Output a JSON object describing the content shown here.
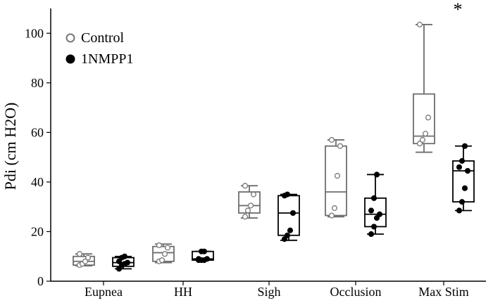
{
  "chart_data": {
    "type": "box",
    "title": "",
    "xlabel": "",
    "ylabel": "Pdi (cm H2O)",
    "ylim": [
      0,
      110
    ],
    "yticks": [
      0,
      20,
      40,
      60,
      80,
      100
    ],
    "grid": false,
    "legend_position": "top-left",
    "categories": [
      "Eupnea",
      "HH",
      "Sigh",
      "Occlusion",
      "Max Stim"
    ],
    "series": [
      {
        "name": "Control",
        "marker": "open-circle",
        "color": "#6e6e6e",
        "boxes": [
          {
            "min": 6.2,
            "q1": 6.5,
            "median": 8.0,
            "q3": 10.0,
            "max": 11.0,
            "points": [
              6.5,
              7.0,
              8.0,
              9.5,
              11.0
            ]
          },
          {
            "min": 7.5,
            "q1": 8.0,
            "median": 11.5,
            "q3": 14.0,
            "max": 15.0,
            "points": [
              8.0,
              8.5,
              11.0,
              13.5,
              14.5
            ]
          },
          {
            "min": 25.5,
            "q1": 27.5,
            "median": 30.5,
            "q3": 36.0,
            "max": 38.5,
            "points": [
              26.0,
              28.5,
              30.5,
              35.0,
              38.5
            ]
          },
          {
            "min": 26.0,
            "q1": 26.5,
            "median": 36.0,
            "q3": 54.5,
            "max": 57.0,
            "points": [
              26.5,
              29.5,
              42.5,
              54.5,
              57.0
            ]
          },
          {
            "min": 52.0,
            "q1": 55.5,
            "median": 58.5,
            "q3": 75.5,
            "max": 103.5,
            "points": [
              55.5,
              57.0,
              59.5,
              66.0,
              103.5
            ]
          }
        ]
      },
      {
        "name": "1NMPP1",
        "marker": "filled-circle",
        "color": "#000000",
        "boxes": [
          {
            "min": 5.0,
            "q1": 6.0,
            "median": 7.5,
            "q3": 9.5,
            "max": 10.0,
            "points": [
              5.0,
              6.5,
              7.0,
              7.5,
              8.0,
              9.5,
              10.0
            ]
          },
          {
            "min": 8.5,
            "q1": 8.5,
            "median": 9.0,
            "q3": 12.0,
            "max": 12.0,
            "points": [
              8.5,
              8.5,
              8.5,
              9.0,
              9.0,
              12.0,
              12.0
            ]
          },
          {
            "min": 16.5,
            "q1": 18.5,
            "median": 27.5,
            "q3": 34.5,
            "max": 35.0,
            "points": [
              17.0,
              18.5,
              20.5,
              27.5,
              34.5,
              35.0
            ]
          },
          {
            "min": 19.0,
            "q1": 22.0,
            "median": 27.0,
            "q3": 33.5,
            "max": 43.0,
            "points": [
              19.0,
              22.0,
              25.5,
              27.0,
              28.5,
              33.5,
              43.0
            ]
          },
          {
            "min": 28.5,
            "q1": 32.0,
            "median": 44.5,
            "q3": 48.5,
            "max": 54.5,
            "points": [
              28.5,
              32.0,
              37.5,
              44.5,
              46.0,
              48.5,
              54.5
            ]
          }
        ]
      }
    ],
    "annotations": [
      {
        "text": "*",
        "category": "Max Stim"
      }
    ]
  }
}
